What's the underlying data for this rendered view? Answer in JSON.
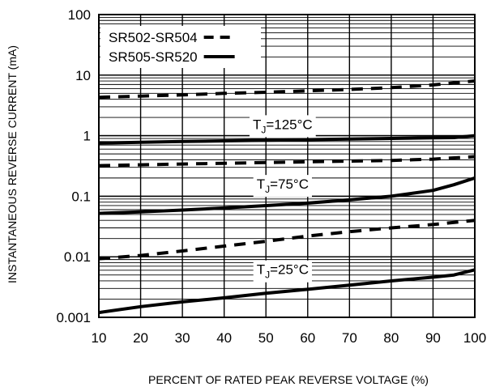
{
  "chart_data": {
    "type": "line",
    "title": "",
    "xlabel": "PERCENT OF RATED PEAK REVERSE VOLTAGE (%)",
    "ylabel": "INSTANTANEOUS REVERSE CURRENT (mA)",
    "xlim": [
      10,
      100
    ],
    "ylim": [
      0.001,
      100
    ],
    "y_scale": "log",
    "grid": true,
    "legend_position": "top-left",
    "x_ticks": [
      "10",
      "20",
      "30",
      "40",
      "50",
      "60",
      "70",
      "80",
      "90",
      "100"
    ],
    "y_ticks": [
      "0.001",
      "0.01",
      "0.1",
      "1",
      "10",
      "100"
    ],
    "legend": [
      {
        "label": "SR502-SR504",
        "style": "dashed"
      },
      {
        "label": "SR505-SR520",
        "style": "solid"
      }
    ],
    "annotations": [
      {
        "text": "T",
        "sub": "J",
        "suffix": "=125°C",
        "x": 54,
        "y": 1.55
      },
      {
        "text": "T",
        "sub": "J",
        "suffix": "=75°C",
        "x": 54,
        "y": 0.16
      },
      {
        "text": "T",
        "sub": "J",
        "suffix": "=25°C",
        "x": 54,
        "y": 0.0062
      }
    ],
    "series": [
      {
        "group": "SR502-SR504",
        "condition": "TJ=125°C",
        "style": "dashed",
        "x": [
          10,
          20,
          30,
          40,
          50,
          60,
          70,
          80,
          90,
          100
        ],
        "values": [
          4.3,
          4.5,
          4.7,
          5.0,
          5.2,
          5.5,
          5.8,
          6.2,
          6.9,
          8.0
        ]
      },
      {
        "group": "SR505-SR520",
        "condition": "TJ=125°C",
        "style": "solid",
        "x": [
          10,
          20,
          30,
          40,
          50,
          60,
          70,
          80,
          90,
          95,
          100
        ],
        "values": [
          0.75,
          0.78,
          0.8,
          0.82,
          0.84,
          0.86,
          0.88,
          0.9,
          0.92,
          0.93,
          1.0
        ]
      },
      {
        "group": "SR502-SR504",
        "condition": "TJ=75°C",
        "style": "dashed",
        "x": [
          10,
          20,
          30,
          40,
          50,
          60,
          70,
          80,
          90,
          100
        ],
        "values": [
          0.32,
          0.33,
          0.34,
          0.35,
          0.36,
          0.37,
          0.38,
          0.39,
          0.41,
          0.45
        ]
      },
      {
        "group": "SR505-SR520",
        "condition": "TJ=75°C",
        "style": "solid",
        "x": [
          10,
          20,
          30,
          40,
          50,
          60,
          70,
          80,
          90,
          95,
          100
        ],
        "values": [
          0.052,
          0.055,
          0.059,
          0.064,
          0.07,
          0.077,
          0.087,
          0.1,
          0.125,
          0.155,
          0.2
        ]
      },
      {
        "group": "SR502-SR504",
        "condition": "TJ=25°C",
        "style": "dashed",
        "x": [
          10,
          20,
          30,
          40,
          50,
          60,
          70,
          80,
          90,
          100
        ],
        "values": [
          0.0093,
          0.0105,
          0.0125,
          0.015,
          0.018,
          0.022,
          0.026,
          0.03,
          0.034,
          0.04
        ]
      },
      {
        "group": "SR505-SR520",
        "condition": "TJ=25°C",
        "style": "solid",
        "x": [
          10,
          20,
          30,
          40,
          50,
          60,
          70,
          80,
          90,
          95,
          100
        ],
        "values": [
          0.0012,
          0.0015,
          0.0018,
          0.0021,
          0.0025,
          0.0029,
          0.0034,
          0.004,
          0.0046,
          0.005,
          0.0061
        ]
      }
    ]
  }
}
